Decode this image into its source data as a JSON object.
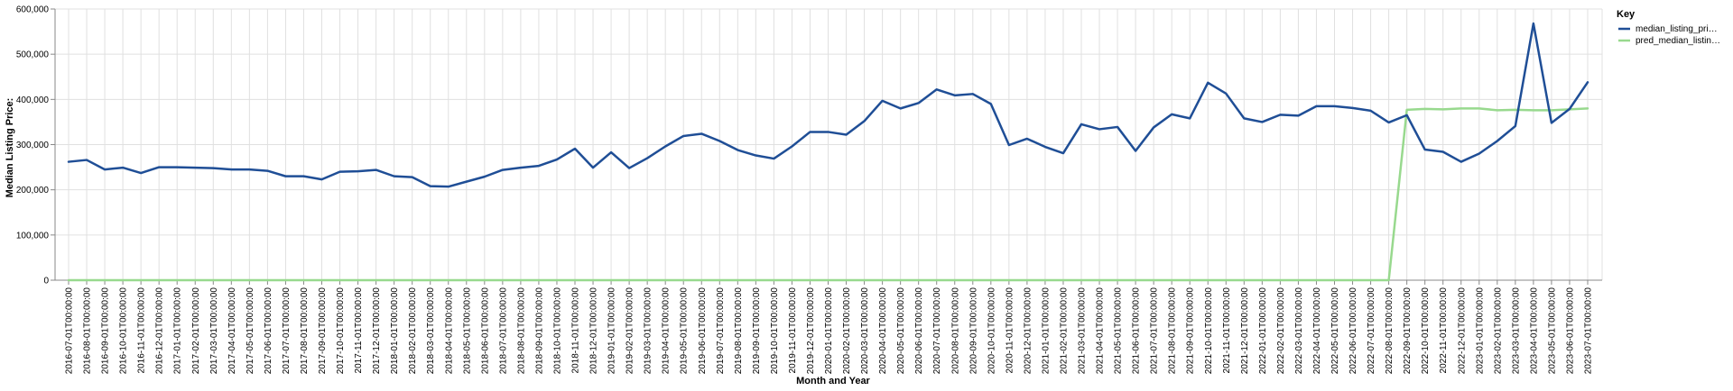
{
  "colors": {
    "median": "#1f4e96",
    "pred": "#98d98e"
  },
  "chart_data": {
    "type": "line",
    "title": "",
    "xlabel": "Month and Year",
    "ylabel": "Median Listing Price:",
    "ylim": [
      0,
      600000
    ],
    "y_ticks": [
      0,
      100000,
      200000,
      300000,
      400000,
      500000,
      600000
    ],
    "y_tick_labels": [
      "0",
      "100,000",
      "200,000",
      "300,000",
      "400,000",
      "500,000",
      "600,000"
    ],
    "grid": true,
    "legend": {
      "title": "Key",
      "placement": "top-right",
      "entries": [
        "median_listing_pri…",
        "pred_median_listin…"
      ]
    },
    "x": [
      "2016-07-01T00:00:00",
      "2016-08-01T00:00:00",
      "2016-09-01T00:00:00",
      "2016-10-01T00:00:00",
      "2016-11-01T00:00:00",
      "2016-12-01T00:00:00",
      "2017-01-01T00:00:00",
      "2017-02-01T00:00:00",
      "2017-03-01T00:00:00",
      "2017-04-01T00:00:00",
      "2017-05-01T00:00:00",
      "2017-06-01T00:00:00",
      "2017-07-01T00:00:00",
      "2017-08-01T00:00:00",
      "2017-09-01T00:00:00",
      "2017-10-01T00:00:00",
      "2017-11-01T00:00:00",
      "2017-12-01T00:00:00",
      "2018-01-01T00:00:00",
      "2018-02-01T00:00:00",
      "2018-03-01T00:00:00",
      "2018-04-01T00:00:00",
      "2018-05-01T00:00:00",
      "2018-06-01T00:00:00",
      "2018-07-01T00:00:00",
      "2018-08-01T00:00:00",
      "2018-09-01T00:00:00",
      "2018-10-01T00:00:00",
      "2018-11-01T00:00:00",
      "2018-12-01T00:00:00",
      "2019-01-01T00:00:00",
      "2019-02-01T00:00:00",
      "2019-03-01T00:00:00",
      "2019-04-01T00:00:00",
      "2019-05-01T00:00:00",
      "2019-06-01T00:00:00",
      "2019-07-01T00:00:00",
      "2019-08-01T00:00:00",
      "2019-09-01T00:00:00",
      "2019-10-01T00:00:00",
      "2019-11-01T00:00:00",
      "2019-12-01T00:00:00",
      "2020-01-01T00:00:00",
      "2020-02-01T00:00:00",
      "2020-03-01T00:00:00",
      "2020-04-01T00:00:00",
      "2020-05-01T00:00:00",
      "2020-06-01T00:00:00",
      "2020-07-01T00:00:00",
      "2020-08-01T00:00:00",
      "2020-09-01T00:00:00",
      "2020-10-01T00:00:00",
      "2020-11-01T00:00:00",
      "2020-12-01T00:00:00",
      "2021-01-01T00:00:00",
      "2021-02-01T00:00:00",
      "2021-03-01T00:00:00",
      "2021-04-01T00:00:00",
      "2021-05-01T00:00:00",
      "2021-06-01T00:00:00",
      "2021-07-01T00:00:00",
      "2021-08-01T00:00:00",
      "2021-09-01T00:00:00",
      "2021-10-01T00:00:00",
      "2021-11-01T00:00:00",
      "2021-12-01T00:00:00",
      "2022-01-01T00:00:00",
      "2022-02-01T00:00:00",
      "2022-03-01T00:00:00",
      "2022-04-01T00:00:00",
      "2022-05-01T00:00:00",
      "2022-06-01T00:00:00",
      "2022-07-01T00:00:00",
      "2022-08-01T00:00:00",
      "2022-09-01T00:00:00",
      "2022-10-01T00:00:00",
      "2022-11-01T00:00:00",
      "2022-12-01T00:00:00",
      "2023-01-01T00:00:00",
      "2023-02-01T00:00:00",
      "2023-03-01T00:00:00",
      "2023-04-01T00:00:00",
      "2023-05-01T00:00:00",
      "2023-06-01T00:00:00",
      "2023-07-01T00:00:00"
    ],
    "series": [
      {
        "name": "median_listing_pri…",
        "values": [
          262000,
          266000,
          245000,
          249000,
          237000,
          250000,
          250000,
          249000,
          248000,
          245000,
          245000,
          242000,
          230000,
          230000,
          223000,
          240000,
          241000,
          244000,
          230000,
          228000,
          208000,
          207000,
          218000,
          229000,
          244000,
          249000,
          253000,
          267000,
          291000,
          249000,
          283000,
          248000,
          270000,
          296000,
          319000,
          324000,
          308000,
          288000,
          276000,
          269000,
          296000,
          328000,
          328000,
          322000,
          352000,
          397000,
          380000,
          392000,
          422000,
          409000,
          412000,
          390000,
          299000,
          313000,
          295000,
          281000,
          345000,
          334000,
          339000,
          286000,
          338000,
          367000,
          358000,
          437000,
          413000,
          358000,
          350000,
          366000,
          364000,
          385000,
          385000,
          381000,
          375000,
          349000,
          365000,
          289000,
          284000,
          262000,
          280000,
          308000,
          341000,
          568000,
          348000,
          379000,
          438000
        ]
      },
      {
        "name": "pred_median_listin…",
        "values": [
          0,
          0,
          0,
          0,
          0,
          0,
          0,
          0,
          0,
          0,
          0,
          0,
          0,
          0,
          0,
          0,
          0,
          0,
          0,
          0,
          0,
          0,
          0,
          0,
          0,
          0,
          0,
          0,
          0,
          0,
          0,
          0,
          0,
          0,
          0,
          0,
          0,
          0,
          0,
          0,
          0,
          0,
          0,
          0,
          0,
          0,
          0,
          0,
          0,
          0,
          0,
          0,
          0,
          0,
          0,
          0,
          0,
          0,
          0,
          0,
          0,
          0,
          0,
          0,
          0,
          0,
          0,
          0,
          0,
          0,
          0,
          0,
          0,
          0,
          377000,
          379000,
          378000,
          380000,
          380000,
          376000,
          377000,
          376000,
          376000,
          378000,
          380000
        ]
      }
    ]
  }
}
